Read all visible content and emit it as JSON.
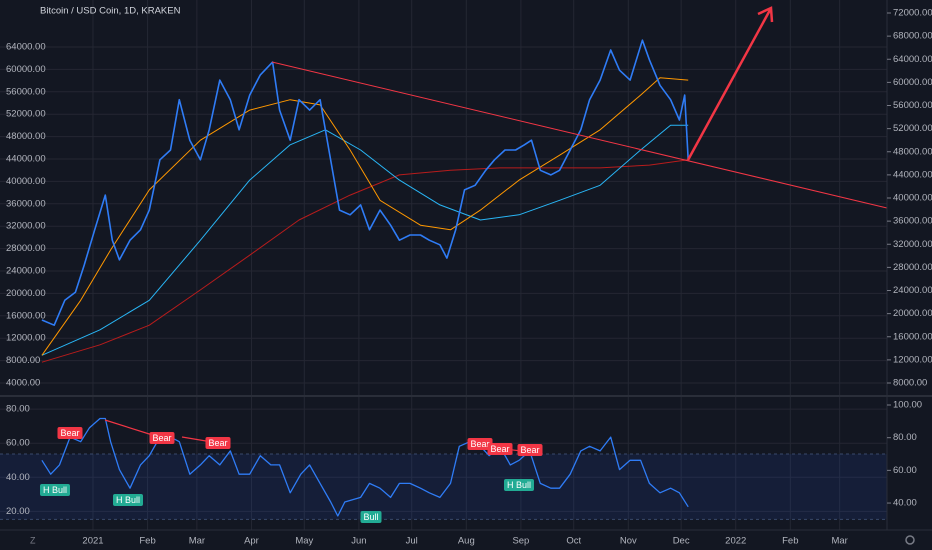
{
  "chart_data": [
    {
      "type": "line",
      "title": "Bitcoin / USD Coin, 1D, KRAKEN",
      "xlim": [
        -52.8,
        450.9
      ],
      "xticks": [
        {
          "value": 0,
          "label": "2021"
        },
        {
          "value": 31,
          "label": "Feb"
        },
        {
          "value": 59,
          "label": "Mar"
        },
        {
          "value": 90,
          "label": "Apr"
        },
        {
          "value": 120,
          "label": "May"
        },
        {
          "value": 151,
          "label": "Jun"
        },
        {
          "value": 181,
          "label": "Jul"
        },
        {
          "value": 212,
          "label": "Aug"
        },
        {
          "value": 243,
          "label": "Sep"
        },
        {
          "value": 273,
          "label": "Oct"
        },
        {
          "value": 304,
          "label": "Nov"
        },
        {
          "value": 334,
          "label": "Dec"
        },
        {
          "value": 365,
          "label": "2022"
        },
        {
          "value": 396,
          "label": "Feb"
        },
        {
          "value": 424,
          "label": "Mar"
        }
      ],
      "ylim": [
        1860,
        72390
      ],
      "yticks": [
        {
          "value": 4000,
          "label": "4000.00"
        },
        {
          "value": 8000,
          "label": "8000.00"
        },
        {
          "value": 12000,
          "label": "12000.00"
        },
        {
          "value": 16000,
          "label": "16000.00"
        },
        {
          "value": 20000,
          "label": "20000.00"
        },
        {
          "value": 24000,
          "label": "24000.00"
        },
        {
          "value": 28000,
          "label": "28000.00"
        },
        {
          "value": 32000,
          "label": "32000.00"
        },
        {
          "value": 36000,
          "label": "36000.00"
        },
        {
          "value": 40000,
          "label": "40000.00"
        },
        {
          "value": 44000,
          "label": "44000.00"
        },
        {
          "value": 48000,
          "label": "48000.00"
        },
        {
          "value": 52000,
          "label": "52000.00"
        },
        {
          "value": 56000,
          "label": "56000.00"
        },
        {
          "value": 60000,
          "label": "60000.00"
        },
        {
          "value": 64000,
          "label": "64000.00"
        }
      ],
      "y2lim": [
        5925,
        74250
      ],
      "y2ticks": [
        {
          "value": 8000,
          "label": "8000.00"
        },
        {
          "value": 12000,
          "label": "12000.00"
        },
        {
          "value": 16000,
          "label": "16000.00"
        },
        {
          "value": 20000,
          "label": "20000.00"
        },
        {
          "value": 24000,
          "label": "24000.00"
        },
        {
          "value": 28000,
          "label": "28000.00"
        },
        {
          "value": 32000,
          "label": "32000.00"
        },
        {
          "value": 36000,
          "label": "36000.00"
        },
        {
          "value": 40000,
          "label": "40000.00"
        },
        {
          "value": 44000,
          "label": "44000.00"
        },
        {
          "value": 48000,
          "label": "48000.00"
        },
        {
          "value": 52000,
          "label": "52000.00"
        },
        {
          "value": 56000,
          "label": "56000.00"
        },
        {
          "value": 60000,
          "label": "60000.00"
        },
        {
          "value": 64000,
          "label": "64000.00"
        },
        {
          "value": 68000,
          "label": "68000.00"
        },
        {
          "value": 72000,
          "label": "72000.00"
        }
      ],
      "grid": true,
      "series": [
        {
          "color": "#b71c1c",
          "width": 1,
          "axis": "y2",
          "x": [
            -29,
            4,
            32,
            61,
            89,
            117,
            146,
            174,
            203,
            231,
            260,
            288,
            316,
            338
          ],
          "values": [
            11600,
            14600,
            18000,
            24100,
            30100,
            36200,
            40500,
            44000,
            44800,
            45200,
            45200,
            45200,
            45700,
            46600
          ]
        },
        {
          "color": "#29b6f6",
          "width": 1,
          "axis": "y2",
          "x": [
            -29,
            4,
            32,
            61,
            89,
            112,
            132,
            152,
            174,
            197,
            220,
            242,
            265,
            288,
            311,
            328,
            338
          ],
          "values": [
            12800,
            17200,
            22300,
            32700,
            43100,
            49200,
            51800,
            48300,
            43100,
            38800,
            36200,
            37100,
            39600,
            42200,
            48300,
            52600,
            52600
          ]
        },
        {
          "color": "#ff9800",
          "width": 1,
          "axis": "y2",
          "x": [
            -29,
            -7,
            10,
            32,
            61,
            89,
            112,
            129,
            146,
            163,
            186,
            203,
            220,
            242,
            265,
            288,
            311,
            322,
            338
          ],
          "values": [
            12800,
            22300,
            31000,
            41400,
            50000,
            55200,
            57000,
            56100,
            48300,
            39600,
            35300,
            34500,
            37900,
            43100,
            47400,
            51800,
            57800,
            60800,
            60400
          ]
        },
        {
          "color": "#2f7cf6",
          "width": 1.6,
          "axis": "y2",
          "x": [
            -29,
            -22,
            -16,
            -10,
            -5,
            1,
            7,
            11,
            15,
            21,
            27,
            32,
            38,
            44,
            49,
            55,
            61,
            66,
            72,
            78,
            83,
            89,
            95,
            102,
            106,
            112,
            117,
            123,
            129,
            134,
            140,
            146,
            152,
            157,
            163,
            169,
            174,
            180,
            186,
            191,
            197,
            201,
            206,
            211,
            217,
            223,
            228,
            234,
            240,
            245,
            249,
            254,
            260,
            265,
            271,
            277,
            282,
            288,
            294,
            299,
            305,
            312,
            316,
            322,
            328,
            333,
            336,
            338
          ],
          "values": [
            18900,
            18000,
            22300,
            23700,
            28400,
            34500,
            40500,
            32700,
            29300,
            32700,
            34500,
            37900,
            46600,
            48300,
            57000,
            50000,
            46600,
            51800,
            60400,
            57000,
            51800,
            57800,
            61300,
            63500,
            55200,
            50000,
            57000,
            55200,
            57000,
            48300,
            37900,
            37100,
            38800,
            34500,
            37900,
            35300,
            32700,
            33600,
            33600,
            32700,
            31900,
            29600,
            34500,
            41400,
            42200,
            44800,
            46600,
            48300,
            48300,
            49200,
            50000,
            44800,
            44000,
            44800,
            48300,
            51800,
            57000,
            60400,
            65600,
            62100,
            60400,
            67300,
            63900,
            59500,
            57000,
            53500,
            57800,
            46600
          ]
        }
      ]
    },
    {
      "type": "line",
      "ylim": [
        9.1,
        87.1
      ],
      "yticks": [
        {
          "value": 20,
          "label": "20.00"
        },
        {
          "value": 40,
          "label": "40.00"
        },
        {
          "value": 60,
          "label": "60.00"
        },
        {
          "value": 80,
          "label": "80.00"
        }
      ],
      "y2lim": [
        23.5,
        104.9
      ],
      "y2ticks": [
        {
          "value": 40,
          "label": "40.00"
        },
        {
          "value": 60,
          "label": "60.00"
        },
        {
          "value": 80,
          "label": "80.00"
        },
        {
          "value": 100,
          "label": "100.00"
        }
      ],
      "band": [
        30,
        70
      ],
      "grid": true,
      "annotations": [
        "Bear",
        "Bear",
        "Bear",
        "Bear",
        "Bear",
        "Bear",
        "H Bull",
        "H Bull",
        "Bull",
        "H Bull"
      ],
      "series": [
        {
          "color": "#2f7cf6",
          "width": 1.3,
          "x": [
            -29,
            -24,
            -19,
            -13,
            -7,
            -2,
            4,
            7,
            10,
            15,
            21,
            27,
            32,
            38,
            44,
            49,
            55,
            61,
            66,
            72,
            78,
            83,
            89,
            95,
            101,
            106,
            112,
            118,
            123,
            129,
            135,
            139,
            143,
            152,
            157,
            163,
            169,
            174,
            180,
            186,
            191,
            197,
            203,
            208,
            214,
            220,
            225,
            231,
            237,
            242,
            248,
            254,
            260,
            265,
            271,
            277,
            282,
            288,
            294,
            299,
            305,
            311,
            316,
            322,
            328,
            333,
            338
          ],
          "values": [
            50.0,
            41.8,
            47.3,
            63.6,
            60.9,
            69.1,
            74.5,
            74.5,
            60.9,
            44.5,
            33.6,
            47.3,
            52.7,
            63.6,
            63.6,
            60.9,
            41.8,
            47.3,
            52.7,
            47.3,
            55.5,
            41.8,
            41.8,
            52.7,
            47.3,
            47.3,
            30.9,
            41.8,
            47.3,
            36.4,
            25.5,
            17.3,
            25.5,
            28.2,
            36.4,
            33.6,
            28.2,
            36.4,
            36.4,
            33.6,
            30.9,
            28.2,
            36.4,
            58.2,
            60.9,
            58.2,
            52.7,
            58.2,
            47.3,
            50.0,
            55.5,
            36.4,
            33.6,
            33.6,
            41.8,
            55.5,
            58.2,
            55.5,
            63.6,
            44.5,
            50.0,
            50.0,
            36.4,
            30.9,
            33.6,
            30.9,
            22.7
          ]
        }
      ]
    }
  ]
}
